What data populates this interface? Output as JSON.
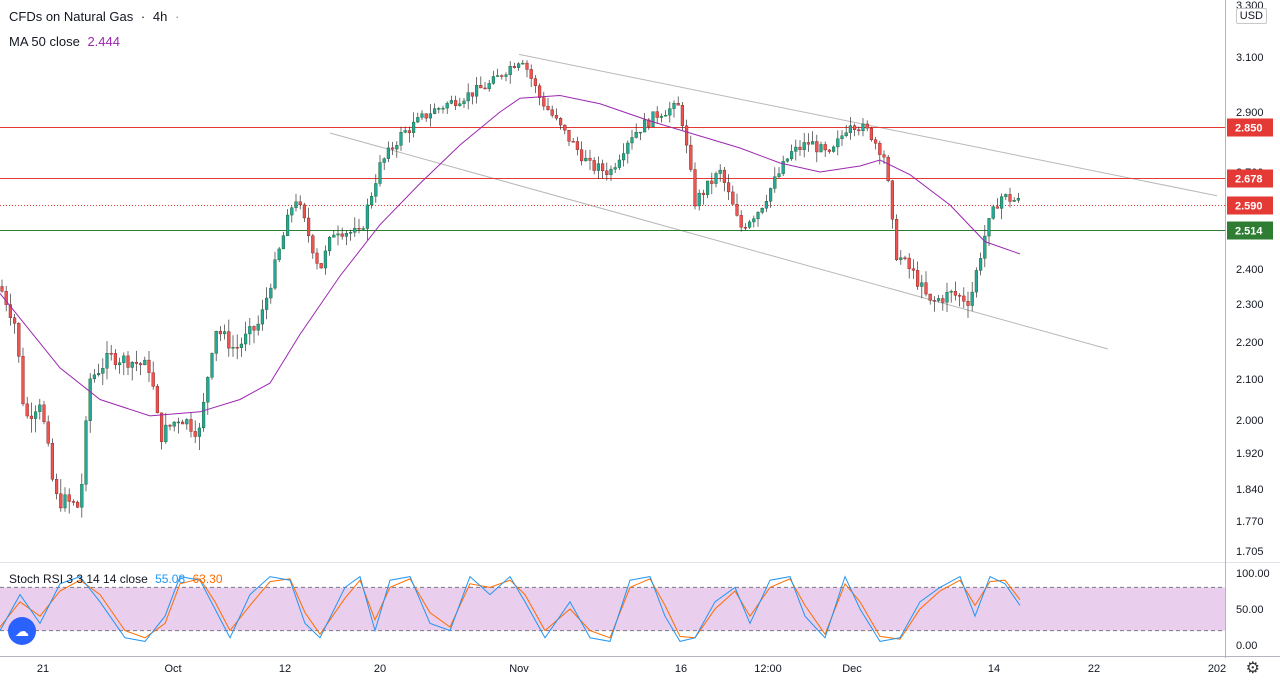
{
  "header": {
    "symbol": "CFDs on Natural Gas",
    "separator": "·",
    "interval": "4h",
    "dash": "·",
    "ma_label": "MA 50 close",
    "ma_value": "2.444",
    "ma_color": "#9c27b0"
  },
  "currency": "USD",
  "stoch": {
    "label": "Stoch RSI 3 3 14 14 close",
    "k_value": "55.08",
    "d_value": "63.30",
    "k_color": "#2196f3",
    "d_color": "#ff6d00",
    "band_color": "#e1bee7"
  },
  "icons": {
    "logo": "tradingview-logo-icon",
    "settings": "gear-icon"
  },
  "chart_data": {
    "type": "candlestick",
    "price_axis": {
      "ticks": [
        "3.300",
        "3.100",
        "2.900",
        "2.700",
        "2.400",
        "2.300",
        "2.200",
        "2.100",
        "2.000",
        "1.920",
        "1.840",
        "1.770",
        "1.705"
      ]
    },
    "time_axis": {
      "ticks": [
        "21",
        "Oct",
        "12",
        "20",
        "Nov",
        "16",
        "12:00",
        "Dec",
        "14",
        "22",
        "202"
      ]
    },
    "horizontal_levels": [
      {
        "value": 2.85,
        "label": "2.850",
        "color": "#e53935"
      },
      {
        "value": 2.678,
        "label": "2.678",
        "color": "#e53935"
      },
      {
        "value": 2.59,
        "label": "2.590",
        "color": "#e53935",
        "style": "dotted"
      },
      {
        "value": 2.514,
        "label": "2.514",
        "color": "#2e7d32"
      }
    ],
    "channel_lines": [
      {
        "from": [
          "Nov",
          3.11
        ],
        "to": [
          "202",
          2.62
        ]
      },
      {
        "from": [
          "12",
          2.82
        ],
        "to": [
          "22",
          2.18
        ]
      }
    ],
    "oscillator_axis": {
      "ticks": [
        "100.00",
        "50.00",
        "0.00"
      ]
    },
    "oscillator_bands": [
      80,
      20
    ],
    "ma_series": [
      [
        0,
        2.33
      ],
      [
        60,
        2.13
      ],
      [
        100,
        2.05
      ],
      [
        150,
        2.01
      ],
      [
        200,
        2.02
      ],
      [
        240,
        2.05
      ],
      [
        270,
        2.09
      ],
      [
        300,
        2.22
      ],
      [
        340,
        2.38
      ],
      [
        380,
        2.53
      ],
      [
        420,
        2.66
      ],
      [
        460,
        2.79
      ],
      [
        500,
        2.9
      ],
      [
        520,
        2.95
      ],
      [
        560,
        2.96
      ],
      [
        600,
        2.93
      ],
      [
        650,
        2.87
      ],
      [
        700,
        2.82
      ],
      [
        740,
        2.78
      ],
      [
        780,
        2.73
      ],
      [
        820,
        2.7
      ],
      [
        860,
        2.72
      ],
      [
        880,
        2.74
      ],
      [
        910,
        2.69
      ],
      [
        950,
        2.59
      ],
      [
        985,
        2.48
      ],
      [
        1020,
        2.444
      ]
    ],
    "price_path": [
      [
        0,
        2.35
      ],
      [
        15,
        2.25
      ],
      [
        25,
        2.0
      ],
      [
        40,
        2.05
      ],
      [
        55,
        1.82
      ],
      [
        80,
        1.8
      ],
      [
        90,
        2.1
      ],
      [
        110,
        2.16
      ],
      [
        130,
        2.15
      ],
      [
        150,
        2.13
      ],
      [
        160,
        1.96
      ],
      [
        180,
        2.01
      ],
      [
        200,
        1.97
      ],
      [
        215,
        2.24
      ],
      [
        235,
        2.18
      ],
      [
        260,
        2.25
      ],
      [
        280,
        2.46
      ],
      [
        295,
        2.62
      ],
      [
        320,
        2.4
      ],
      [
        335,
        2.52
      ],
      [
        360,
        2.5
      ],
      [
        380,
        2.72
      ],
      [
        400,
        2.82
      ],
      [
        430,
        2.9
      ],
      [
        460,
        2.95
      ],
      [
        490,
        3.0
      ],
      [
        505,
        3.05
      ],
      [
        522,
        3.1
      ],
      [
        540,
        2.95
      ],
      [
        560,
        2.85
      ],
      [
        590,
        2.72
      ],
      [
        610,
        2.7
      ],
      [
        630,
        2.82
      ],
      [
        660,
        2.9
      ],
      [
        680,
        2.92
      ],
      [
        695,
        2.6
      ],
      [
        720,
        2.7
      ],
      [
        740,
        2.52
      ],
      [
        760,
        2.58
      ],
      [
        790,
        2.76
      ],
      [
        810,
        2.8
      ],
      [
        830,
        2.75
      ],
      [
        850,
        2.87
      ],
      [
        870,
        2.83
      ],
      [
        885,
        2.75
      ],
      [
        895,
        2.45
      ],
      [
        915,
        2.38
      ],
      [
        930,
        2.3
      ],
      [
        950,
        2.33
      ],
      [
        970,
        2.31
      ],
      [
        985,
        2.5
      ],
      [
        1000,
        2.62
      ],
      [
        1020,
        2.6
      ]
    ],
    "stoch_k": [
      [
        0,
        20
      ],
      [
        20,
        70
      ],
      [
        40,
        30
      ],
      [
        60,
        85
      ],
      [
        80,
        95
      ],
      [
        100,
        60
      ],
      [
        125,
        10
      ],
      [
        145,
        5
      ],
      [
        165,
        40
      ],
      [
        180,
        95
      ],
      [
        200,
        90
      ],
      [
        215,
        50
      ],
      [
        230,
        10
      ],
      [
        250,
        70
      ],
      [
        270,
        95
      ],
      [
        290,
        90
      ],
      [
        305,
        30
      ],
      [
        320,
        10
      ],
      [
        345,
        80
      ],
      [
        360,
        95
      ],
      [
        375,
        20
      ],
      [
        390,
        90
      ],
      [
        410,
        95
      ],
      [
        430,
        30
      ],
      [
        450,
        20
      ],
      [
        470,
        95
      ],
      [
        490,
        70
      ],
      [
        510,
        95
      ],
      [
        525,
        60
      ],
      [
        545,
        10
      ],
      [
        570,
        60
      ],
      [
        590,
        10
      ],
      [
        610,
        5
      ],
      [
        630,
        90
      ],
      [
        650,
        95
      ],
      [
        665,
        40
      ],
      [
        680,
        5
      ],
      [
        695,
        10
      ],
      [
        715,
        60
      ],
      [
        735,
        80
      ],
      [
        750,
        30
      ],
      [
        770,
        90
      ],
      [
        790,
        95
      ],
      [
        805,
        40
      ],
      [
        825,
        10
      ],
      [
        845,
        95
      ],
      [
        860,
        50
      ],
      [
        880,
        5
      ],
      [
        900,
        10
      ],
      [
        920,
        60
      ],
      [
        940,
        80
      ],
      [
        960,
        95
      ],
      [
        975,
        40
      ],
      [
        990,
        95
      ],
      [
        1005,
        85
      ],
      [
        1020,
        55
      ]
    ],
    "stoch_d": [
      [
        0,
        25
      ],
      [
        20,
        60
      ],
      [
        40,
        40
      ],
      [
        60,
        75
      ],
      [
        80,
        90
      ],
      [
        100,
        70
      ],
      [
        125,
        20
      ],
      [
        145,
        10
      ],
      [
        165,
        30
      ],
      [
        180,
        85
      ],
      [
        200,
        92
      ],
      [
        215,
        60
      ],
      [
        230,
        20
      ],
      [
        250,
        55
      ],
      [
        270,
        88
      ],
      [
        290,
        92
      ],
      [
        305,
        45
      ],
      [
        320,
        15
      ],
      [
        345,
        65
      ],
      [
        360,
        90
      ],
      [
        375,
        35
      ],
      [
        390,
        80
      ],
      [
        410,
        92
      ],
      [
        430,
        45
      ],
      [
        450,
        25
      ],
      [
        470,
        85
      ],
      [
        490,
        80
      ],
      [
        510,
        90
      ],
      [
        525,
        70
      ],
      [
        545,
        20
      ],
      [
        570,
        50
      ],
      [
        590,
        20
      ],
      [
        610,
        10
      ],
      [
        630,
        80
      ],
      [
        650,
        92
      ],
      [
        665,
        55
      ],
      [
        680,
        12
      ],
      [
        695,
        10
      ],
      [
        715,
        50
      ],
      [
        735,
        75
      ],
      [
        750,
        40
      ],
      [
        770,
        80
      ],
      [
        790,
        92
      ],
      [
        805,
        55
      ],
      [
        825,
        15
      ],
      [
        845,
        85
      ],
      [
        860,
        60
      ],
      [
        880,
        12
      ],
      [
        900,
        8
      ],
      [
        920,
        50
      ],
      [
        940,
        75
      ],
      [
        960,
        90
      ],
      [
        975,
        55
      ],
      [
        990,
        88
      ],
      [
        1005,
        90
      ],
      [
        1020,
        63
      ]
    ]
  }
}
